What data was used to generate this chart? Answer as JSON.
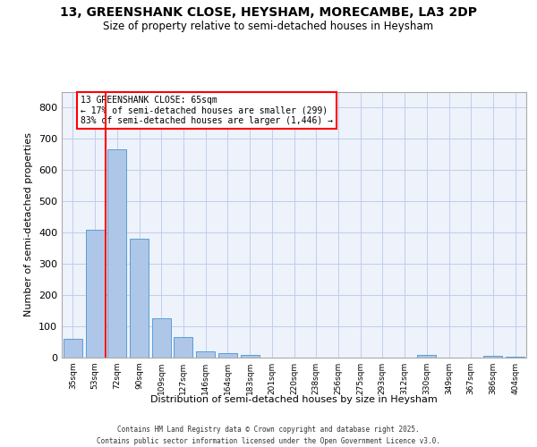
{
  "title1": "13, GREENSHANK CLOSE, HEYSHAM, MORECAMBE, LA3 2DP",
  "title2": "Size of property relative to semi-detached houses in Heysham",
  "xlabel": "Distribution of semi-detached houses by size in Heysham",
  "ylabel": "Number of semi-detached properties",
  "bar_labels": [
    "35sqm",
    "53sqm",
    "72sqm",
    "90sqm",
    "109sqm",
    "127sqm",
    "146sqm",
    "164sqm",
    "183sqm",
    "201sqm",
    "220sqm",
    "238sqm",
    "256sqm",
    "275sqm",
    "293sqm",
    "312sqm",
    "330sqm",
    "349sqm",
    "367sqm",
    "386sqm",
    "404sqm"
  ],
  "bar_heights": [
    60,
    410,
    665,
    380,
    125,
    65,
    20,
    15,
    10,
    0,
    0,
    0,
    0,
    0,
    0,
    0,
    8,
    0,
    0,
    5,
    3
  ],
  "bar_color": "#aec6e8",
  "bar_edge_color": "#5a9fd4",
  "vline_color": "red",
  "annotation_title": "13 GREENSHANK CLOSE: 65sqm",
  "annotation_line1": "← 17% of semi-detached houses are smaller (299)",
  "annotation_line2": "83% of semi-detached houses are larger (1,446) →",
  "annotation_box_color": "red",
  "ylim": [
    0,
    850
  ],
  "yticks": [
    0,
    100,
    200,
    300,
    400,
    500,
    600,
    700,
    800
  ],
  "footer1": "Contains HM Land Registry data © Crown copyright and database right 2025.",
  "footer2": "Contains public sector information licensed under the Open Government Licence v3.0.",
  "bg_color": "#eef2fb",
  "grid_color": "#c0ceeb"
}
